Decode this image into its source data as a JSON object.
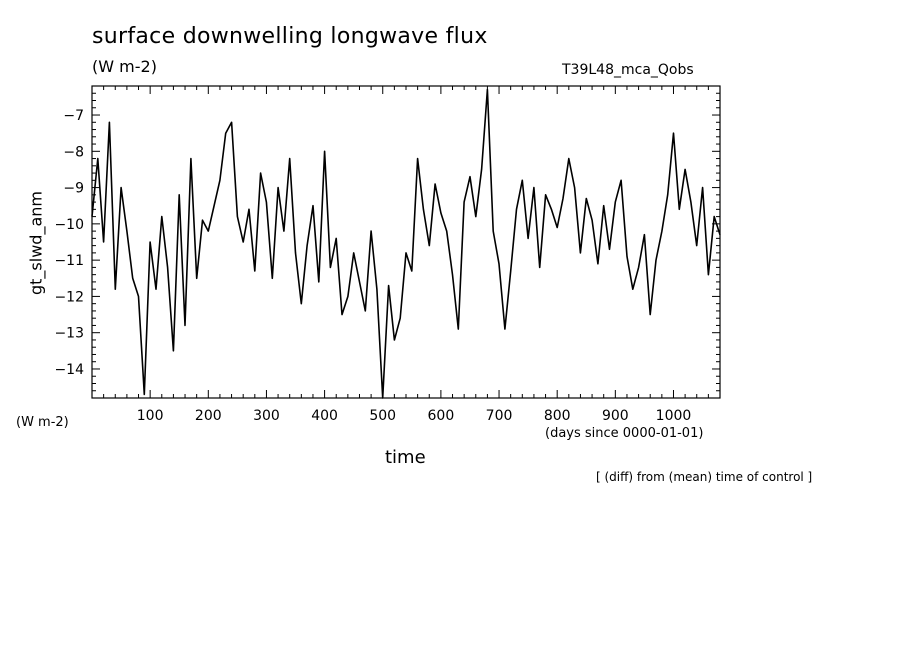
{
  "chart_data": {
    "type": "line",
    "title": "surface downwelling longwave flux",
    "units_top": "(W m-2)",
    "run_label": "T39L48_mca_Qobs",
    "units_left": "(W m-2)",
    "xlabel": "time",
    "xlabel_units": "(days since 0000-01-01)",
    "ylabel": "gt_slwd_anm",
    "note": "[ (diff) from (mean) time of control ]",
    "xlim": [
      0,
      1080
    ],
    "ylim": [
      -14.8,
      -6.2
    ],
    "xticks": [
      100,
      200,
      300,
      400,
      500,
      600,
      700,
      800,
      900,
      1000
    ],
    "yticks": [
      -7,
      -8,
      -9,
      -10,
      -11,
      -12,
      -13,
      -14
    ],
    "grid": false,
    "series": [
      {
        "color": "#000000",
        "x": [
          0,
          10,
          20,
          30,
          40,
          50,
          60,
          70,
          80,
          90,
          100,
          110,
          120,
          130,
          140,
          150,
          160,
          170,
          180,
          190,
          200,
          210,
          220,
          230,
          240,
          250,
          260,
          270,
          280,
          290,
          300,
          310,
          320,
          330,
          340,
          350,
          360,
          370,
          380,
          390,
          400,
          410,
          420,
          430,
          440,
          450,
          460,
          470,
          480,
          490,
          500,
          510,
          520,
          530,
          540,
          550,
          560,
          570,
          580,
          590,
          600,
          610,
          620,
          630,
          640,
          650,
          660,
          670,
          680,
          690,
          700,
          710,
          720,
          730,
          740,
          750,
          760,
          770,
          780,
          790,
          800,
          810,
          820,
          830,
          840,
          850,
          860,
          870,
          880,
          890,
          900,
          910,
          920,
          930,
          940,
          950,
          960,
          970,
          980,
          990,
          1000,
          1010,
          1020,
          1030,
          1040,
          1050,
          1060,
          1070,
          1080
        ],
        "values": [
          -9.8,
          -8.2,
          -10.5,
          -7.2,
          -11.8,
          -9.0,
          -10.2,
          -11.5,
          -12.0,
          -14.7,
          -10.5,
          -11.8,
          -9.8,
          -11.2,
          -13.5,
          -9.2,
          -12.8,
          -8.2,
          -11.5,
          -9.9,
          -10.2,
          -9.5,
          -8.8,
          -7.5,
          -7.2,
          -9.8,
          -10.5,
          -9.6,
          -11.3,
          -8.6,
          -9.4,
          -11.5,
          -9.0,
          -10.2,
          -8.2,
          -10.8,
          -12.2,
          -10.6,
          -9.5,
          -11.6,
          -8.0,
          -11.2,
          -10.4,
          -12.5,
          -12.0,
          -10.8,
          -11.6,
          -12.4,
          -10.2,
          -11.8,
          -14.8,
          -11.7,
          -13.2,
          -12.6,
          -10.8,
          -11.3,
          -8.2,
          -9.6,
          -10.6,
          -8.9,
          -9.7,
          -10.2,
          -11.4,
          -12.9,
          -9.4,
          -8.7,
          -9.8,
          -8.5,
          -6.3,
          -10.2,
          -11.1,
          -12.9,
          -11.3,
          -9.6,
          -8.8,
          -10.4,
          -9.0,
          -11.2,
          -9.2,
          -9.6,
          -10.1,
          -9.3,
          -8.2,
          -9.0,
          -10.8,
          -9.3,
          -9.9,
          -11.1,
          -9.5,
          -10.7,
          -9.4,
          -8.8,
          -10.9,
          -11.8,
          -11.2,
          -10.3,
          -12.5,
          -11.0,
          -10.2,
          -9.2,
          -7.5,
          -9.6,
          -8.5,
          -9.4,
          -10.6,
          -9.0,
          -11.4,
          -9.8,
          -10.3
        ]
      }
    ]
  }
}
